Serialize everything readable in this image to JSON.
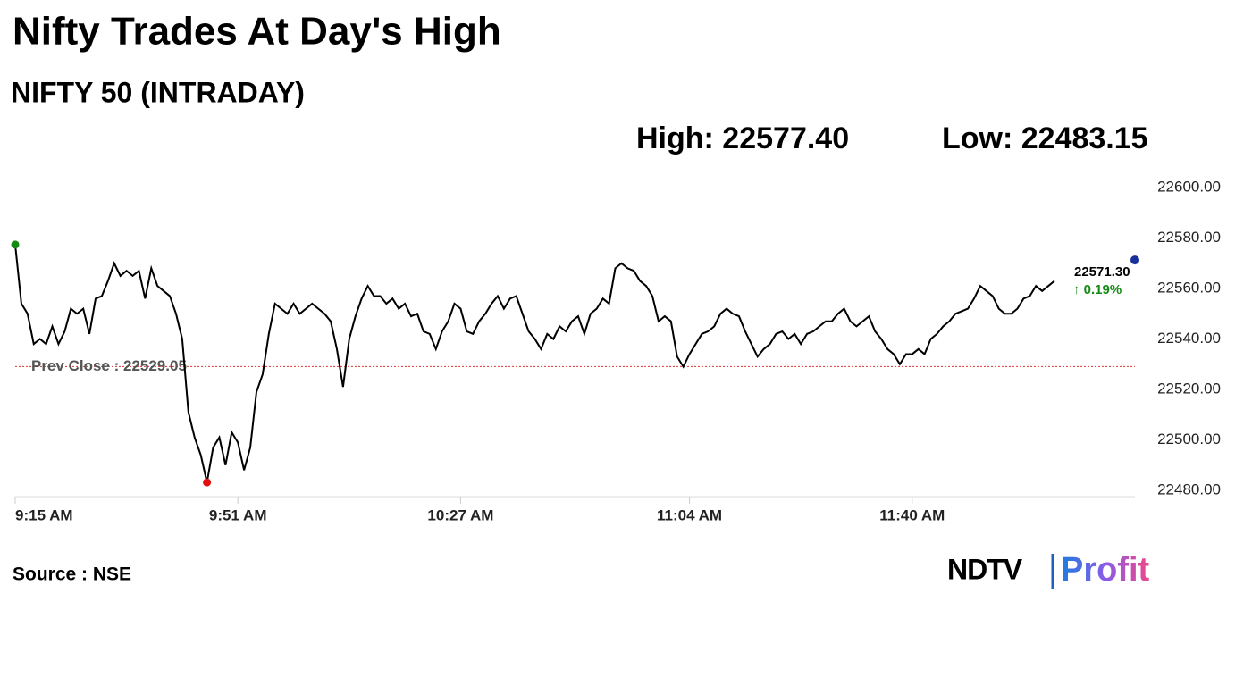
{
  "chart_data": {
    "type": "line",
    "title": "Nifty Trades At Day's High",
    "subtitle": "NIFTY 50 (INTRADAY)",
    "high": {
      "label": "High: 22577.40",
      "value": 22577.4
    },
    "low": {
      "label": "Low: 22483.15",
      "value": 22483.15
    },
    "prev_close": {
      "label": "Prev Close : 22529.05",
      "value": 22529.05
    },
    "last": {
      "label": "22571.30",
      "value": 22571.3,
      "change": "↑ 0.19%"
    },
    "source": "Source : NSE",
    "logo": {
      "brand": "NDTV",
      "product": "Profit"
    },
    "color": "#000000",
    "x": [
      555,
      556,
      557,
      558,
      559,
      560,
      561,
      562,
      563,
      564,
      565,
      566,
      567,
      568,
      569,
      570,
      571,
      572,
      573,
      574,
      575,
      576,
      577,
      578,
      579,
      580,
      581,
      582,
      583,
      584,
      585,
      586,
      587,
      588,
      589,
      590,
      591,
      592,
      593,
      594,
      595,
      596,
      597,
      598,
      599,
      600,
      601,
      602,
      603,
      604,
      605,
      606,
      607,
      608,
      609,
      610,
      611,
      612,
      613,
      614,
      615,
      616,
      617,
      618,
      619,
      620,
      621,
      622,
      623,
      624,
      625,
      626,
      627,
      628,
      629,
      630,
      631,
      632,
      633,
      634,
      635,
      636,
      637,
      638,
      639,
      640,
      641,
      642,
      643,
      644,
      645,
      646,
      647,
      648,
      649,
      650,
      651,
      652,
      653,
      654,
      655,
      656,
      657,
      658,
      659,
      660,
      661,
      662,
      663,
      664,
      665,
      666,
      667,
      668,
      669,
      670,
      671,
      672,
      673,
      674,
      675,
      676,
      677,
      678,
      679,
      680,
      681,
      682,
      683,
      684,
      685,
      686,
      687,
      688,
      689,
      690,
      691,
      692,
      693,
      694,
      695,
      696,
      697,
      698,
      699,
      700,
      701,
      702,
      703,
      704,
      705,
      706,
      707,
      708,
      709,
      710,
      711,
      712,
      713,
      714,
      715,
      716,
      717,
      718,
      719,
      720,
      721,
      722,
      723
    ],
    "values": [
      22577.4,
      22554,
      22550,
      22538,
      22540,
      22538,
      22545,
      22538,
      22543,
      22552,
      22550,
      22552,
      22542,
      22556,
      22557,
      22563,
      22570,
      22565,
      22567,
      22565,
      22567,
      22556,
      22568,
      22561,
      22559,
      22557,
      22550,
      22540,
      22511,
      22501,
      22494,
      22483.15,
      22497,
      22501,
      22490,
      22503,
      22499,
      22488,
      22497,
      22519,
      22526,
      22542,
      22554,
      22552,
      22550,
      22554,
      22550,
      22552,
      22554,
      22552,
      22550,
      22547,
      22536,
      22521,
      22540,
      22549,
      22556,
      22561,
      22557,
      22557,
      22554,
      22556,
      22552,
      22554,
      22549,
      22550,
      22543,
      22542,
      22536,
      22543,
      22547,
      22554,
      22552,
      22543,
      22542,
      22547,
      22550,
      22554,
      22557,
      22552,
      22556,
      22557,
      22550,
      22543,
      22540,
      22536,
      22542,
      22540,
      22545,
      22543,
      22547,
      22549,
      22542,
      22550,
      22552,
      22556,
      22554,
      22568,
      22570,
      22568,
      22567,
      22563,
      22561,
      22557,
      22547,
      22549,
      22547,
      22533,
      22529,
      22534,
      22538,
      22542,
      22543,
      22545,
      22550,
      22552,
      22550,
      22549,
      22543,
      22538,
      22533,
      22536,
      22538,
      22542,
      22543,
      22540,
      22542,
      22538,
      22542,
      22543,
      22545,
      22547,
      22547,
      22550,
      22552,
      22547,
      22545,
      22547,
      22549,
      22543,
      22540,
      22536,
      22534,
      22530,
      22534,
      22534,
      22536,
      22534,
      22540,
      22542,
      22545,
      22547,
      22550,
      22551,
      22552,
      22556,
      22561,
      22559,
      22557,
      22552,
      22550,
      22550,
      22552,
      22556,
      22557,
      22561,
      22559,
      22561,
      22563
    ],
    "xlim": [
      555,
      736
    ],
    "xticks": [
      {
        "value": 555,
        "label": "9:15 AM"
      },
      {
        "value": 591,
        "label": "9:51 AM"
      },
      {
        "value": 627,
        "label": "10:27 AM"
      },
      {
        "value": 664,
        "label": "11:04 AM"
      },
      {
        "value": 700,
        "label": "11:40 AM"
      }
    ],
    "ylim": [
      22480,
      22600
    ],
    "yticks": [
      {
        "value": 22480,
        "label": "22480.00"
      },
      {
        "value": 22500,
        "label": "22500.00"
      },
      {
        "value": 22520,
        "label": "22520.00"
      },
      {
        "value": 22540,
        "label": "22540.00"
      },
      {
        "value": 22560,
        "label": "22560.00"
      },
      {
        "value": 22580,
        "label": "22580.00"
      },
      {
        "value": 22600,
        "label": "22600.00"
      }
    ]
  }
}
